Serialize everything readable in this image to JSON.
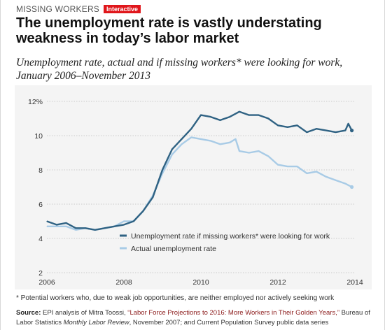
{
  "header": {
    "kicker": "MISSING WORKERS",
    "badge": "Interactive",
    "headline": "The unemployment rate is vastly understating weakness in today’s labor market",
    "subtitle": "Unemployment rate, actual and if missing workers* were looking for work, January 2006–November 2013"
  },
  "colors": {
    "missing": "#2f6283",
    "actual": "#a8cbe6",
    "badge": "#e0161b",
    "grid": "#bcbcbc",
    "background": "#f4f4f4"
  },
  "footer": {
    "footnote": "* Potential workers who, due to weak job opportunities, are neither employed nor actively seeking work",
    "source_label": "Source:",
    "source_text1": " EPI analysis of Mitra Toossi, ",
    "source_link": "“Labor Force Projections to 2016: More Workers in Their Golden Years,”",
    "source_text2": " Bureau of Labor Statistics ",
    "source_journal": "Monthly Labor Review",
    "source_text3": ", November 2007; and Current Population Survey public data series"
  },
  "chart_data": {
    "type": "line",
    "ylim": [
      2,
      12
    ],
    "xlim": [
      2006,
      2014
    ],
    "y_ticks": [
      {
        "value": 2,
        "label": "2"
      },
      {
        "value": 4,
        "label": "4"
      },
      {
        "value": 6,
        "label": "6"
      },
      {
        "value": 8,
        "label": "8"
      },
      {
        "value": 10,
        "label": "10"
      },
      {
        "value": 12,
        "label": "12%"
      }
    ],
    "x_ticks": [
      {
        "value": 2006,
        "label": "2006"
      },
      {
        "value": 2008,
        "label": "2008"
      },
      {
        "value": 2010,
        "label": "2010"
      },
      {
        "value": 2012,
        "label": "2012"
      },
      {
        "value": 2014,
        "label": "2014"
      }
    ],
    "grid": "horizontal",
    "legend_position": "bottom-center",
    "series": [
      {
        "name": "Unemployment rate if missing workers* were looking for work",
        "color": "#2f6283",
        "points": [
          [
            2006.0,
            5.0
          ],
          [
            2006.25,
            4.8
          ],
          [
            2006.5,
            4.9
          ],
          [
            2006.75,
            4.6
          ],
          [
            2007.0,
            4.6
          ],
          [
            2007.25,
            4.5
          ],
          [
            2007.5,
            4.6
          ],
          [
            2007.75,
            4.7
          ],
          [
            2008.0,
            4.8
          ],
          [
            2008.25,
            5.0
          ],
          [
            2008.5,
            5.6
          ],
          [
            2008.75,
            6.4
          ],
          [
            2009.0,
            8.0
          ],
          [
            2009.25,
            9.2
          ],
          [
            2009.5,
            9.8
          ],
          [
            2009.75,
            10.4
          ],
          [
            2010.0,
            11.2
          ],
          [
            2010.25,
            11.1
          ],
          [
            2010.5,
            10.9
          ],
          [
            2010.75,
            11.1
          ],
          [
            2011.0,
            11.4
          ],
          [
            2011.25,
            11.2
          ],
          [
            2011.5,
            11.2
          ],
          [
            2011.75,
            11.0
          ],
          [
            2012.0,
            10.6
          ],
          [
            2012.25,
            10.5
          ],
          [
            2012.5,
            10.6
          ],
          [
            2012.75,
            10.2
          ],
          [
            2013.0,
            10.4
          ],
          [
            2013.25,
            10.3
          ],
          [
            2013.5,
            10.2
          ],
          [
            2013.75,
            10.3
          ],
          [
            2013.83,
            10.7
          ],
          [
            2013.92,
            10.3
          ]
        ]
      },
      {
        "name": "Actual unemployment rate",
        "color": "#a8cbe6",
        "points": [
          [
            2006.0,
            4.7
          ],
          [
            2006.25,
            4.7
          ],
          [
            2006.5,
            4.7
          ],
          [
            2006.75,
            4.5
          ],
          [
            2007.0,
            4.6
          ],
          [
            2007.25,
            4.5
          ],
          [
            2007.5,
            4.6
          ],
          [
            2007.75,
            4.7
          ],
          [
            2008.0,
            5.0
          ],
          [
            2008.25,
            5.0
          ],
          [
            2008.5,
            5.6
          ],
          [
            2008.75,
            6.5
          ],
          [
            2009.0,
            7.8
          ],
          [
            2009.25,
            8.9
          ],
          [
            2009.5,
            9.5
          ],
          [
            2009.75,
            9.9
          ],
          [
            2010.0,
            9.8
          ],
          [
            2010.25,
            9.7
          ],
          [
            2010.5,
            9.5
          ],
          [
            2010.75,
            9.6
          ],
          [
            2010.9,
            9.8
          ],
          [
            2011.0,
            9.1
          ],
          [
            2011.25,
            9.0
          ],
          [
            2011.5,
            9.1
          ],
          [
            2011.75,
            8.8
          ],
          [
            2012.0,
            8.3
          ],
          [
            2012.25,
            8.2
          ],
          [
            2012.5,
            8.2
          ],
          [
            2012.75,
            7.8
          ],
          [
            2013.0,
            7.9
          ],
          [
            2013.25,
            7.6
          ],
          [
            2013.5,
            7.4
          ],
          [
            2013.75,
            7.2
          ],
          [
            2013.92,
            7.0
          ]
        ]
      }
    ]
  }
}
